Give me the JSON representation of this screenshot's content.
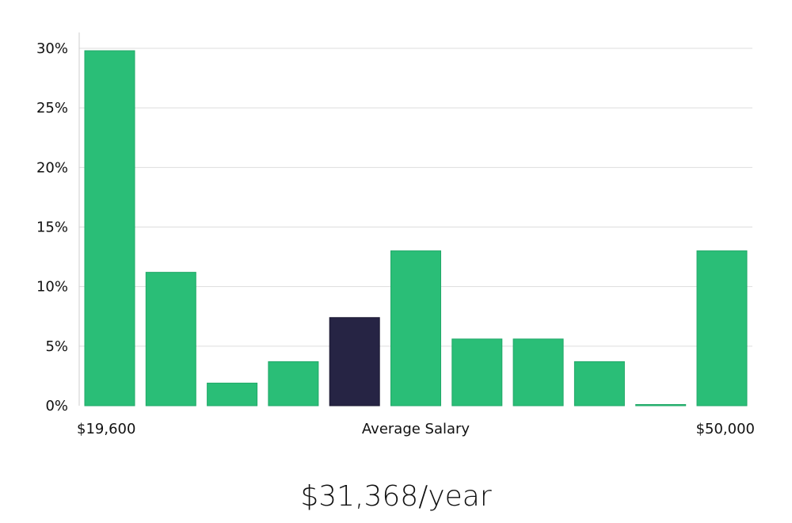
{
  "chart_data": {
    "type": "bar",
    "categories": [
      "1",
      "2",
      "3",
      "4",
      "5",
      "6",
      "7",
      "8",
      "9",
      "10",
      "11"
    ],
    "values": [
      29.8,
      11.2,
      1.9,
      3.7,
      7.4,
      13.0,
      5.6,
      5.6,
      3.7,
      0.1,
      13.0
    ],
    "highlight_index": 4,
    "ylim": [
      0,
      30
    ],
    "yticks": [
      0,
      5,
      10,
      15,
      20,
      25,
      30
    ],
    "ytick_labels": [
      "0%",
      "5%",
      "10%",
      "15%",
      "20%",
      "25%",
      "30%"
    ],
    "x_labels": {
      "left": "$19,600",
      "center": "Average Salary",
      "right": "$50,000"
    },
    "grid": true,
    "colors": {
      "bar": "#2abe77",
      "highlight": "#262444",
      "grid": "#dddddd",
      "axis": "#cccccc"
    }
  },
  "summary": {
    "salary": "$31,368/year"
  }
}
